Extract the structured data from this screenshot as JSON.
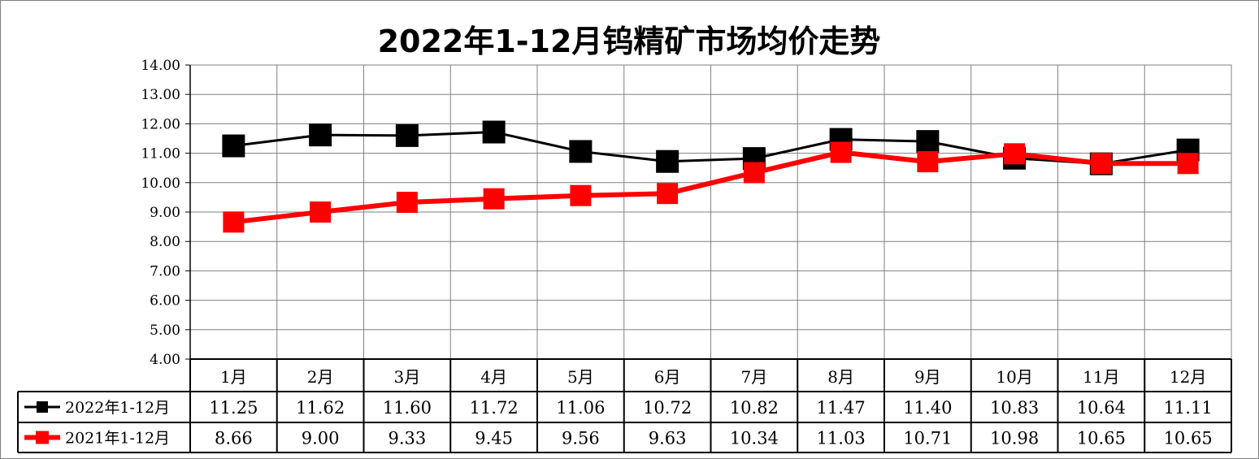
{
  "chart_data": {
    "type": "line",
    "title": "2022年1-12月钨精矿市场均价走势",
    "categories": [
      "1月",
      "2月",
      "3月",
      "4月",
      "5月",
      "6月",
      "7月",
      "8月",
      "9月",
      "10月",
      "11月",
      "12月"
    ],
    "ylim": [
      4,
      14
    ],
    "yticks": [
      "4.00",
      "5.00",
      "6.00",
      "7.00",
      "8.00",
      "9.00",
      "10.00",
      "11.00",
      "12.00",
      "13.00",
      "14.00"
    ],
    "grid": true,
    "legend_placement": "data-table-left",
    "series": [
      {
        "name": "2022年1-12月",
        "color": "#000000",
        "marker": "square",
        "values": [
          11.25,
          11.62,
          11.6,
          11.72,
          11.06,
          10.72,
          10.82,
          11.47,
          11.4,
          10.83,
          10.64,
          11.11
        ],
        "labels": [
          "11.25",
          "11.62",
          "11.60",
          "11.72",
          "11.06",
          "10.72",
          "10.82",
          "11.47",
          "11.40",
          "10.83",
          "10.64",
          "11.11"
        ]
      },
      {
        "name": "2021年1-12月",
        "color": "#ff0000",
        "marker": "square",
        "values": [
          8.66,
          9.0,
          9.33,
          9.45,
          9.56,
          9.63,
          10.34,
          11.03,
          10.71,
          10.98,
          10.65,
          10.65
        ],
        "labels": [
          "8.66",
          "9.00",
          "9.33",
          "9.45",
          "9.56",
          "9.63",
          "10.34",
          "11.03",
          "10.71",
          "10.98",
          "10.65",
          "10.65"
        ]
      }
    ]
  }
}
